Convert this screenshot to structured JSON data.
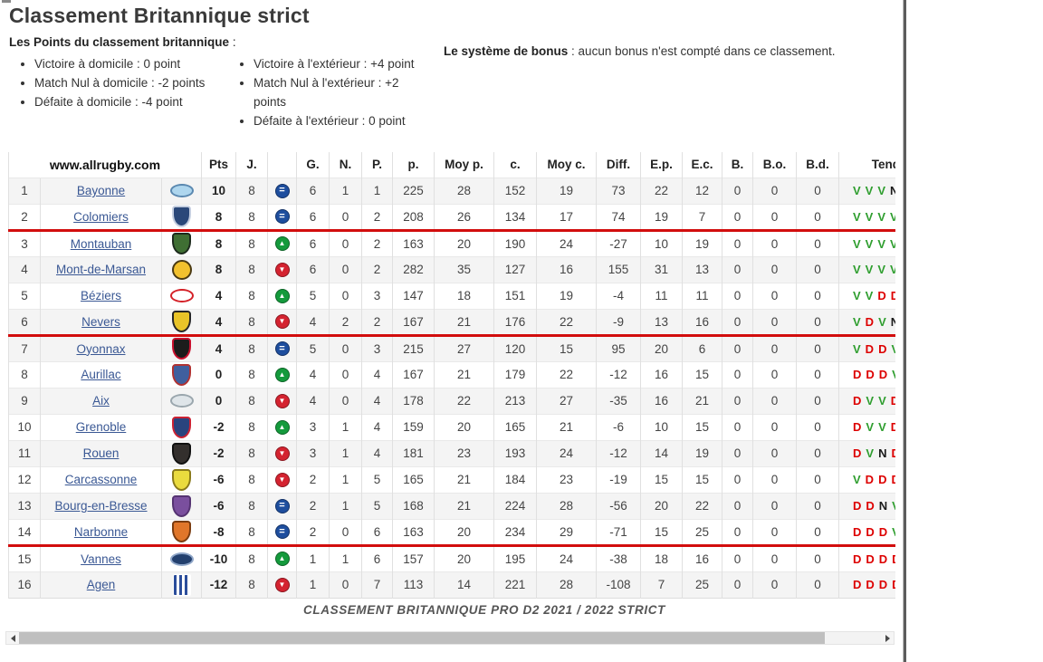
{
  "header": {
    "title": "Classement Britannique strict"
  },
  "points": {
    "heading": "Les Points du classement britannique",
    "colon": " :",
    "home": [
      "Victoire à domicile : 0 point",
      "Match Nul à domicile : -2 points",
      "Défaite à domicile : -4 point"
    ],
    "away": [
      "Victoire à l'extérieur : +4 point",
      "Match Nul à l'extérieur : +2 points",
      "Défaite à l'extérieur : 0 point"
    ]
  },
  "bonus": {
    "label": "Le système de bonus",
    "text": " : aucun bonus n'est compté dans ce classement."
  },
  "colors": {
    "win_letter": "#2f9e2f",
    "loss_letter": "#dd0000",
    "draw_letter": "#1a1a1a",
    "move_same": "#1e4e9e",
    "move_up": "#149a3c",
    "move_down": "#d42330",
    "separator_line": "#d20d0d",
    "link": "#3a5894"
  },
  "table": {
    "site_header": "www.allrugby.com",
    "columns": {
      "pts": "Pts",
      "j": "J.",
      "g": "G.",
      "n": "N.",
      "p": "P.",
      "pp": "p.",
      "moyp": "Moy p.",
      "c": "c.",
      "moyc": "Moy c.",
      "diff": "Diff.",
      "ep": "E.p.",
      "ec": "E.c.",
      "b": "B.",
      "bo": "B.o.",
      "bd": "B.d.",
      "tend": "Tendance"
    },
    "caption": "CLASSEMENT BRITANNIQUE PRO D2 2021 / 2022 STRICT",
    "rows": [
      {
        "rank": 1,
        "team": "Bayonne",
        "pts": "10",
        "j": 8,
        "move": "same",
        "g": 6,
        "n": 1,
        "p": 1,
        "pp": 225,
        "moyp": 28,
        "c": 152,
        "moyc": 19,
        "diff": "73",
        "ep": 22,
        "ec": 12,
        "b": 0,
        "bo": 0,
        "bd": 0,
        "tend": [
          "V",
          "V",
          "V",
          "N"
        ],
        "shaded": true,
        "sep": false,
        "logo": {
          "shape": "oval",
          "c1": "#aed6ee",
          "c2": "#5a88b0"
        }
      },
      {
        "rank": 2,
        "team": "Colomiers",
        "pts": "8",
        "j": 8,
        "move": "same",
        "g": 6,
        "n": 0,
        "p": 2,
        "pp": 208,
        "moyp": 26,
        "c": 134,
        "moyc": 17,
        "diff": "74",
        "ep": 19,
        "ec": 7,
        "b": 0,
        "bo": 0,
        "bd": 0,
        "tend": [
          "V",
          "V",
          "V",
          "V"
        ],
        "shaded": false,
        "sep": true,
        "logo": {
          "shape": "shield",
          "c1": "#2a4879",
          "c2": "#c5cfe0"
        }
      },
      {
        "rank": 3,
        "team": "Montauban",
        "pts": "8",
        "j": 8,
        "move": "up",
        "g": 6,
        "n": 0,
        "p": 2,
        "pp": 163,
        "moyp": 20,
        "c": 190,
        "moyc": 24,
        "diff": "-27",
        "ep": 10,
        "ec": 19,
        "b": 0,
        "bo": 0,
        "bd": 0,
        "tend": [
          "V",
          "V",
          "V",
          "V"
        ],
        "shaded": false,
        "sep": false,
        "logo": {
          "shape": "shield",
          "c1": "#3f6f33",
          "c2": "#1d2b1d"
        }
      },
      {
        "rank": 4,
        "team": "Mont-de-Marsan",
        "pts": "8",
        "j": 8,
        "move": "down",
        "g": 6,
        "n": 0,
        "p": 2,
        "pp": 282,
        "moyp": 35,
        "c": 127,
        "moyc": 16,
        "diff": "155",
        "ep": 31,
        "ec": 13,
        "b": 0,
        "bo": 0,
        "bd": 0,
        "tend": [
          "V",
          "V",
          "V",
          "V"
        ],
        "shaded": true,
        "sep": false,
        "logo": {
          "shape": "circle",
          "c1": "#f2c12e",
          "c2": "#4a3a12"
        }
      },
      {
        "rank": 5,
        "team": "Béziers",
        "pts": "4",
        "j": 8,
        "move": "up",
        "g": 5,
        "n": 0,
        "p": 3,
        "pp": 147,
        "moyp": 18,
        "c": 151,
        "moyc": 19,
        "diff": "-4",
        "ep": 11,
        "ec": 11,
        "b": 0,
        "bo": 0,
        "bd": 0,
        "tend": [
          "V",
          "V",
          "D",
          "D"
        ],
        "shaded": false,
        "sep": false,
        "logo": {
          "shape": "oval",
          "c1": "#ffffff",
          "c2": "#d42027"
        }
      },
      {
        "rank": 6,
        "team": "Nevers",
        "pts": "4",
        "j": 8,
        "move": "down",
        "g": 4,
        "n": 2,
        "p": 2,
        "pp": 167,
        "moyp": 21,
        "c": 176,
        "moyc": 22,
        "diff": "-9",
        "ep": 13,
        "ec": 16,
        "b": 0,
        "bo": 0,
        "bd": 0,
        "tend": [
          "V",
          "D",
          "V",
          "N"
        ],
        "shaded": true,
        "sep": true,
        "logo": {
          "shape": "shield",
          "c1": "#e9c428",
          "c2": "#262626"
        }
      },
      {
        "rank": 7,
        "team": "Oyonnax",
        "pts": "4",
        "j": 8,
        "move": "same",
        "g": 5,
        "n": 0,
        "p": 3,
        "pp": 215,
        "moyp": 27,
        "c": 120,
        "moyc": 15,
        "diff": "95",
        "ep": 20,
        "ec": 6,
        "b": 0,
        "bo": 0,
        "bd": 0,
        "tend": [
          "V",
          "D",
          "D",
          "V"
        ],
        "shaded": true,
        "sep": false,
        "logo": {
          "shape": "shield",
          "c1": "#1c1c1c",
          "c2": "#c8102e"
        }
      },
      {
        "rank": 8,
        "team": "Aurillac",
        "pts": "0",
        "j": 8,
        "move": "up",
        "g": 4,
        "n": 0,
        "p": 4,
        "pp": 167,
        "moyp": 21,
        "c": 179,
        "moyc": 22,
        "diff": "-12",
        "ep": 16,
        "ec": 15,
        "b": 0,
        "bo": 0,
        "bd": 0,
        "tend": [
          "D",
          "D",
          "D",
          "V"
        ],
        "shaded": false,
        "sep": false,
        "logo": {
          "shape": "shield",
          "c1": "#3f5f9e",
          "c2": "#b03333"
        }
      },
      {
        "rank": 9,
        "team": "Aix",
        "pts": "0",
        "j": 8,
        "move": "down",
        "g": 4,
        "n": 0,
        "p": 4,
        "pp": 178,
        "moyp": 22,
        "c": 213,
        "moyc": 27,
        "diff": "-35",
        "ep": 16,
        "ec": 21,
        "b": 0,
        "bo": 0,
        "bd": 0,
        "tend": [
          "D",
          "V",
          "V",
          "D"
        ],
        "shaded": true,
        "sep": false,
        "logo": {
          "shape": "oval",
          "c1": "#dfe5e9",
          "c2": "#9aa6ad"
        }
      },
      {
        "rank": 10,
        "team": "Grenoble",
        "pts": "-2",
        "j": 8,
        "move": "up",
        "g": 3,
        "n": 1,
        "p": 4,
        "pp": 159,
        "moyp": 20,
        "c": 165,
        "moyc": 21,
        "diff": "-6",
        "ep": 10,
        "ec": 15,
        "b": 0,
        "bo": 0,
        "bd": 0,
        "tend": [
          "D",
          "V",
          "V",
          "D"
        ],
        "shaded": false,
        "sep": false,
        "logo": {
          "shape": "shield",
          "c1": "#2a447e",
          "c2": "#cc2233"
        }
      },
      {
        "rank": 11,
        "team": "Rouen",
        "pts": "-2",
        "j": 8,
        "move": "down",
        "g": 3,
        "n": 1,
        "p": 4,
        "pp": 181,
        "moyp": 23,
        "c": 193,
        "moyc": 24,
        "diff": "-12",
        "ep": 14,
        "ec": 19,
        "b": 0,
        "bo": 0,
        "bd": 0,
        "tend": [
          "D",
          "V",
          "N",
          "D"
        ],
        "shaded": true,
        "sep": false,
        "logo": {
          "shape": "shield",
          "c1": "#332f2d",
          "c2": "#111111"
        }
      },
      {
        "rank": 12,
        "team": "Carcassonne",
        "pts": "-6",
        "j": 8,
        "move": "down",
        "g": 2,
        "n": 1,
        "p": 5,
        "pp": 165,
        "moyp": 21,
        "c": 184,
        "moyc": 23,
        "diff": "-19",
        "ep": 15,
        "ec": 15,
        "b": 0,
        "bo": 0,
        "bd": 0,
        "tend": [
          "V",
          "D",
          "D",
          "D"
        ],
        "shaded": false,
        "sep": false,
        "logo": {
          "shape": "shield",
          "c1": "#eadb3e",
          "c2": "#8a7a1a"
        }
      },
      {
        "rank": 13,
        "team": "Bourg-en-Bresse",
        "pts": "-6",
        "j": 8,
        "move": "same",
        "g": 2,
        "n": 1,
        "p": 5,
        "pp": 168,
        "moyp": 21,
        "c": 224,
        "moyc": 28,
        "diff": "-56",
        "ep": 20,
        "ec": 22,
        "b": 0,
        "bo": 0,
        "bd": 0,
        "tend": [
          "D",
          "D",
          "N",
          "V"
        ],
        "shaded": true,
        "sep": false,
        "logo": {
          "shape": "shield",
          "c1": "#7a4f9e",
          "c2": "#553372"
        }
      },
      {
        "rank": 14,
        "team": "Narbonne",
        "pts": "-8",
        "j": 8,
        "move": "same",
        "g": 2,
        "n": 0,
        "p": 6,
        "pp": 163,
        "moyp": 20,
        "c": 234,
        "moyc": 29,
        "diff": "-71",
        "ep": 15,
        "ec": 25,
        "b": 0,
        "bo": 0,
        "bd": 0,
        "tend": [
          "D",
          "D",
          "D",
          "V"
        ],
        "shaded": false,
        "sep": true,
        "logo": {
          "shape": "shield",
          "c1": "#e0762a",
          "c2": "#7a3c10"
        }
      },
      {
        "rank": 15,
        "team": "Vannes",
        "pts": "-10",
        "j": 8,
        "move": "up",
        "g": 1,
        "n": 1,
        "p": 6,
        "pp": 157,
        "moyp": 20,
        "c": 195,
        "moyc": 24,
        "diff": "-38",
        "ep": 18,
        "ec": 16,
        "b": 0,
        "bo": 0,
        "bd": 0,
        "tend": [
          "D",
          "D",
          "D",
          "D"
        ],
        "shaded": false,
        "sep": false,
        "logo": {
          "shape": "oval",
          "c1": "#23406e",
          "c2": "#8fa6c8"
        }
      },
      {
        "rank": 16,
        "team": "Agen",
        "pts": "-12",
        "j": 8,
        "move": "down",
        "g": 1,
        "n": 0,
        "p": 7,
        "pp": 113,
        "moyp": 14,
        "c": 221,
        "moyc": 28,
        "diff": "-108",
        "ep": 7,
        "ec": 25,
        "b": 0,
        "bo": 0,
        "bd": 0,
        "tend": [
          "D",
          "D",
          "D",
          "D"
        ],
        "shaded": true,
        "sep": false,
        "logo": {
          "shape": "bars",
          "c1": "#2b4d9b",
          "c2": "#ffffff"
        }
      }
    ]
  }
}
